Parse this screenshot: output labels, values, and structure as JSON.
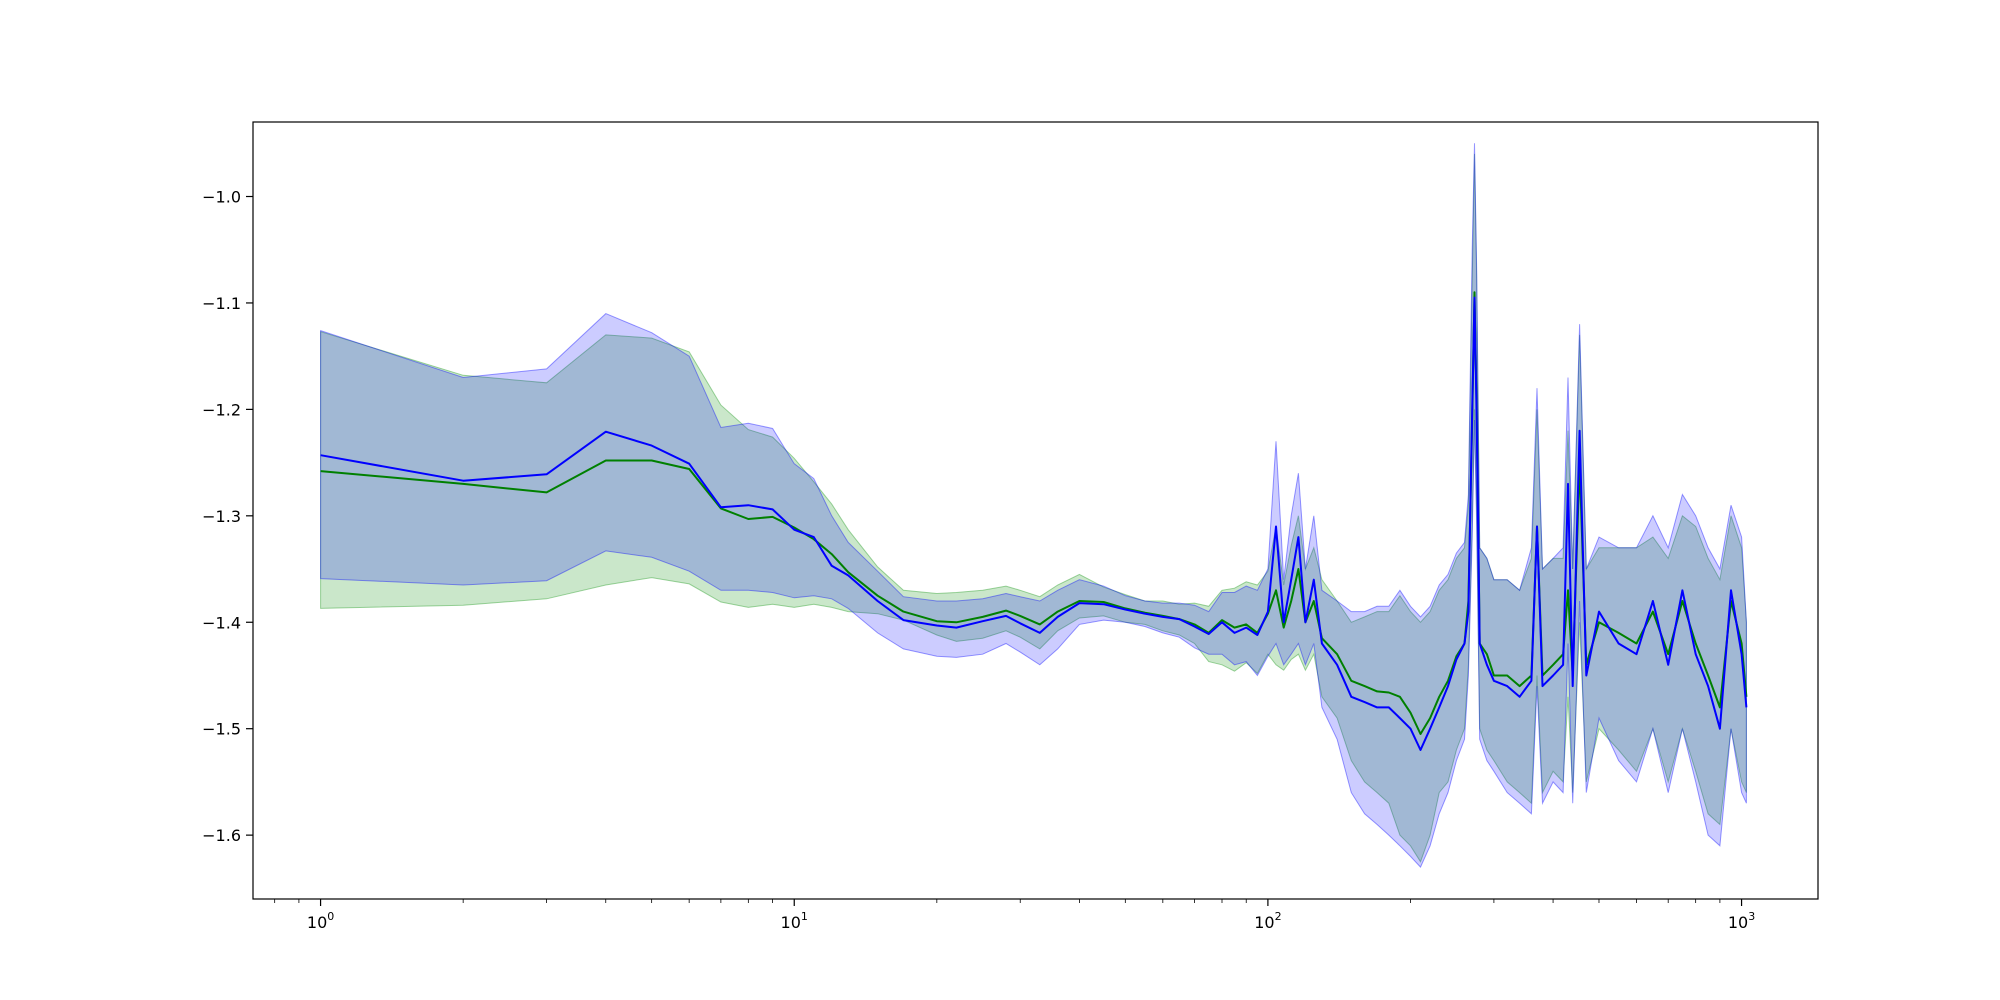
{
  "chart_data": {
    "type": "line",
    "x_scale": "log",
    "xlim": [
      0.72,
      1450
    ],
    "ylim": [
      -1.66,
      -0.93
    ],
    "x_ticks": [
      {
        "value": 1,
        "base": "10",
        "exp": "0"
      },
      {
        "value": 10,
        "base": "10",
        "exp": "1"
      },
      {
        "value": 100,
        "base": "10",
        "exp": "2"
      },
      {
        "value": 1000,
        "base": "10",
        "exp": "3"
      }
    ],
    "y_ticks": [
      {
        "value": -1.0,
        "label": "−1.0"
      },
      {
        "value": -1.1,
        "label": "−1.1"
      },
      {
        "value": -1.2,
        "label": "−1.2"
      },
      {
        "value": -1.3,
        "label": "−1.3"
      },
      {
        "value": -1.4,
        "label": "−1.4"
      },
      {
        "value": -1.5,
        "label": "−1.5"
      },
      {
        "value": -1.6,
        "label": "−1.6"
      }
    ],
    "grid": false,
    "series": [
      {
        "color": "#008000",
        "band_color": "#2ca02c",
        "band_opacity": 0.25,
        "points": [
          [
            1,
            -1.258,
            -1.387,
            -1.127
          ],
          [
            2,
            -1.27,
            -1.384,
            -1.168
          ],
          [
            3,
            -1.278,
            -1.378,
            -1.175
          ],
          [
            4,
            -1.248,
            -1.365,
            -1.13
          ],
          [
            5,
            -1.248,
            -1.358,
            -1.133
          ],
          [
            6,
            -1.256,
            -1.364,
            -1.146
          ],
          [
            7,
            -1.293,
            -1.381,
            -1.196
          ],
          [
            8,
            -1.303,
            -1.386,
            -1.219
          ],
          [
            9,
            -1.301,
            -1.383,
            -1.226
          ],
          [
            10,
            -1.311,
            -1.386,
            -1.246
          ],
          [
            11,
            -1.322,
            -1.383,
            -1.268
          ],
          [
            12,
            -1.336,
            -1.386,
            -1.289
          ],
          [
            13,
            -1.353,
            -1.39,
            -1.313
          ],
          [
            15,
            -1.375,
            -1.392,
            -1.348
          ],
          [
            17,
            -1.39,
            -1.398,
            -1.37
          ],
          [
            20,
            -1.399,
            -1.412,
            -1.373
          ],
          [
            22,
            -1.4,
            -1.418,
            -1.372
          ],
          [
            25,
            -1.395,
            -1.415,
            -1.37
          ],
          [
            28,
            -1.389,
            -1.408,
            -1.366
          ],
          [
            30,
            -1.394,
            -1.414,
            -1.37
          ],
          [
            33,
            -1.402,
            -1.425,
            -1.376
          ],
          [
            36,
            -1.39,
            -1.408,
            -1.365
          ],
          [
            40,
            -1.38,
            -1.396,
            -1.355
          ],
          [
            45,
            -1.381,
            -1.394,
            -1.367
          ],
          [
            50,
            -1.387,
            -1.4,
            -1.374
          ],
          [
            55,
            -1.391,
            -1.402,
            -1.38
          ],
          [
            60,
            -1.394,
            -1.408,
            -1.38
          ],
          [
            65,
            -1.397,
            -1.412,
            -1.383
          ],
          [
            70,
            -1.402,
            -1.42,
            -1.382
          ],
          [
            75,
            -1.41,
            -1.437,
            -1.385
          ],
          [
            80,
            -1.398,
            -1.44,
            -1.37
          ],
          [
            85,
            -1.405,
            -1.446,
            -1.368
          ],
          [
            90,
            -1.402,
            -1.438,
            -1.362
          ],
          [
            95,
            -1.41,
            -1.448,
            -1.365
          ],
          [
            100,
            -1.392,
            -1.43,
            -1.352
          ],
          [
            104,
            -1.37,
            -1.44,
            -1.31
          ],
          [
            108,
            -1.405,
            -1.445,
            -1.365
          ],
          [
            112,
            -1.38,
            -1.435,
            -1.328
          ],
          [
            116,
            -1.35,
            -1.43,
            -1.3
          ],
          [
            120,
            -1.4,
            -1.445,
            -1.35
          ],
          [
            125,
            -1.38,
            -1.43,
            -1.33
          ],
          [
            130,
            -1.415,
            -1.47,
            -1.36
          ],
          [
            140,
            -1.43,
            -1.49,
            -1.38
          ],
          [
            150,
            -1.455,
            -1.53,
            -1.4
          ],
          [
            160,
            -1.46,
            -1.55,
            -1.395
          ],
          [
            170,
            -1.465,
            -1.56,
            -1.39
          ],
          [
            180,
            -1.466,
            -1.57,
            -1.39
          ],
          [
            190,
            -1.47,
            -1.6,
            -1.375
          ],
          [
            200,
            -1.485,
            -1.61,
            -1.39
          ],
          [
            210,
            -1.505,
            -1.625,
            -1.4
          ],
          [
            220,
            -1.49,
            -1.6,
            -1.39
          ],
          [
            230,
            -1.47,
            -1.56,
            -1.37
          ],
          [
            240,
            -1.455,
            -1.55,
            -1.36
          ],
          [
            250,
            -1.432,
            -1.52,
            -1.34
          ],
          [
            260,
            -1.42,
            -1.5,
            -1.33
          ],
          [
            265,
            -1.38,
            -1.44,
            -1.29
          ],
          [
            270,
            -1.21,
            -1.31,
            -1.08
          ],
          [
            273,
            -1.09,
            -1.2,
            -0.96
          ],
          [
            276,
            -1.2,
            -1.3,
            -1.08
          ],
          [
            280,
            -1.42,
            -1.5,
            -1.33
          ],
          [
            290,
            -1.43,
            -1.52,
            -1.34
          ],
          [
            300,
            -1.45,
            -1.53,
            -1.36
          ],
          [
            320,
            -1.45,
            -1.55,
            -1.36
          ],
          [
            340,
            -1.46,
            -1.56,
            -1.37
          ],
          [
            360,
            -1.45,
            -1.57,
            -1.34
          ],
          [
            370,
            -1.31,
            -1.45,
            -1.2
          ],
          [
            380,
            -1.45,
            -1.56,
            -1.35
          ],
          [
            400,
            -1.44,
            -1.54,
            -1.34
          ],
          [
            420,
            -1.43,
            -1.55,
            -1.34
          ],
          [
            430,
            -1.37,
            -1.47,
            -1.22
          ],
          [
            440,
            -1.45,
            -1.56,
            -1.35
          ],
          [
            455,
            -1.25,
            -1.4,
            -1.13
          ],
          [
            470,
            -1.44,
            -1.55,
            -1.35
          ],
          [
            500,
            -1.4,
            -1.5,
            -1.33
          ],
          [
            550,
            -1.41,
            -1.52,
            -1.33
          ],
          [
            600,
            -1.42,
            -1.54,
            -1.33
          ],
          [
            650,
            -1.39,
            -1.5,
            -1.32
          ],
          [
            700,
            -1.43,
            -1.55,
            -1.34
          ],
          [
            750,
            -1.38,
            -1.5,
            -1.3
          ],
          [
            800,
            -1.42,
            -1.54,
            -1.31
          ],
          [
            850,
            -1.45,
            -1.58,
            -1.34
          ],
          [
            900,
            -1.48,
            -1.59,
            -1.36
          ],
          [
            950,
            -1.38,
            -1.5,
            -1.3
          ],
          [
            1000,
            -1.42,
            -1.55,
            -1.33
          ],
          [
            1024,
            -1.47,
            -1.56,
            -1.4
          ]
        ]
      },
      {
        "color": "#0000ff",
        "band_color": "#0000ff",
        "band_opacity": 0.2,
        "points": [
          [
            1,
            -1.243,
            -1.359,
            -1.126
          ],
          [
            2,
            -1.267,
            -1.365,
            -1.17
          ],
          [
            3,
            -1.261,
            -1.361,
            -1.162
          ],
          [
            4,
            -1.221,
            -1.333,
            -1.11
          ],
          [
            5,
            -1.234,
            -1.339,
            -1.128
          ],
          [
            6,
            -1.251,
            -1.352,
            -1.15
          ],
          [
            7,
            -1.292,
            -1.37,
            -1.217
          ],
          [
            8,
            -1.29,
            -1.37,
            -1.213
          ],
          [
            9,
            -1.294,
            -1.372,
            -1.218
          ],
          [
            10,
            -1.313,
            -1.377,
            -1.251
          ],
          [
            11,
            -1.32,
            -1.375,
            -1.265
          ],
          [
            12,
            -1.347,
            -1.378,
            -1.3
          ],
          [
            13,
            -1.356,
            -1.387,
            -1.325
          ],
          [
            15,
            -1.38,
            -1.41,
            -1.352
          ],
          [
            17,
            -1.398,
            -1.425,
            -1.376
          ],
          [
            20,
            -1.403,
            -1.432,
            -1.38
          ],
          [
            22,
            -1.405,
            -1.433,
            -1.38
          ],
          [
            25,
            -1.399,
            -1.43,
            -1.378
          ],
          [
            28,
            -1.394,
            -1.42,
            -1.373
          ],
          [
            30,
            -1.401,
            -1.428,
            -1.376
          ],
          [
            33,
            -1.41,
            -1.44,
            -1.38
          ],
          [
            36,
            -1.395,
            -1.425,
            -1.37
          ],
          [
            40,
            -1.382,
            -1.402,
            -1.36
          ],
          [
            45,
            -1.383,
            -1.398,
            -1.366
          ],
          [
            50,
            -1.388,
            -1.4,
            -1.375
          ],
          [
            55,
            -1.392,
            -1.404,
            -1.38
          ],
          [
            60,
            -1.395,
            -1.41,
            -1.382
          ],
          [
            65,
            -1.397,
            -1.414,
            -1.382
          ],
          [
            70,
            -1.404,
            -1.424,
            -1.384
          ],
          [
            75,
            -1.411,
            -1.43,
            -1.39
          ],
          [
            80,
            -1.4,
            -1.43,
            -1.372
          ],
          [
            85,
            -1.41,
            -1.44,
            -1.372
          ],
          [
            90,
            -1.405,
            -1.437,
            -1.366
          ],
          [
            95,
            -1.412,
            -1.45,
            -1.37
          ],
          [
            100,
            -1.39,
            -1.432,
            -1.35
          ],
          [
            104,
            -1.31,
            -1.42,
            -1.23
          ],
          [
            108,
            -1.4,
            -1.44,
            -1.36
          ],
          [
            112,
            -1.36,
            -1.43,
            -1.3
          ],
          [
            116,
            -1.32,
            -1.42,
            -1.26
          ],
          [
            120,
            -1.4,
            -1.44,
            -1.35
          ],
          [
            125,
            -1.36,
            -1.42,
            -1.3
          ],
          [
            130,
            -1.42,
            -1.48,
            -1.37
          ],
          [
            140,
            -1.44,
            -1.51,
            -1.38
          ],
          [
            150,
            -1.47,
            -1.56,
            -1.39
          ],
          [
            160,
            -1.475,
            -1.58,
            -1.39
          ],
          [
            170,
            -1.48,
            -1.59,
            -1.385
          ],
          [
            180,
            -1.48,
            -1.6,
            -1.385
          ],
          [
            190,
            -1.49,
            -1.61,
            -1.37
          ],
          [
            200,
            -1.5,
            -1.62,
            -1.385
          ],
          [
            210,
            -1.52,
            -1.63,
            -1.395
          ],
          [
            220,
            -1.5,
            -1.61,
            -1.385
          ],
          [
            230,
            -1.48,
            -1.58,
            -1.365
          ],
          [
            240,
            -1.46,
            -1.56,
            -1.355
          ],
          [
            250,
            -1.435,
            -1.53,
            -1.335
          ],
          [
            260,
            -1.42,
            -1.51,
            -1.325
          ],
          [
            265,
            -1.39,
            -1.45,
            -1.28
          ],
          [
            270,
            -1.2,
            -1.32,
            -1.05
          ],
          [
            273,
            -1.095,
            -1.21,
            -0.95
          ],
          [
            276,
            -1.21,
            -1.31,
            -1.07
          ],
          [
            280,
            -1.42,
            -1.51,
            -1.33
          ],
          [
            290,
            -1.44,
            -1.53,
            -1.34
          ],
          [
            300,
            -1.455,
            -1.54,
            -1.36
          ],
          [
            320,
            -1.46,
            -1.56,
            -1.36
          ],
          [
            340,
            -1.47,
            -1.57,
            -1.37
          ],
          [
            360,
            -1.455,
            -1.58,
            -1.33
          ],
          [
            370,
            -1.31,
            -1.46,
            -1.18
          ],
          [
            380,
            -1.46,
            -1.57,
            -1.35
          ],
          [
            400,
            -1.45,
            -1.55,
            -1.34
          ],
          [
            420,
            -1.44,
            -1.56,
            -1.33
          ],
          [
            430,
            -1.27,
            -1.42,
            -1.17
          ],
          [
            440,
            -1.46,
            -1.57,
            -1.35
          ],
          [
            455,
            -1.22,
            -1.38,
            -1.12
          ],
          [
            470,
            -1.45,
            -1.56,
            -1.35
          ],
          [
            500,
            -1.39,
            -1.49,
            -1.32
          ],
          [
            550,
            -1.42,
            -1.53,
            -1.33
          ],
          [
            600,
            -1.43,
            -1.55,
            -1.33
          ],
          [
            650,
            -1.38,
            -1.5,
            -1.3
          ],
          [
            700,
            -1.44,
            -1.56,
            -1.33
          ],
          [
            750,
            -1.37,
            -1.5,
            -1.28
          ],
          [
            800,
            -1.43,
            -1.55,
            -1.3
          ],
          [
            850,
            -1.46,
            -1.6,
            -1.33
          ],
          [
            900,
            -1.5,
            -1.61,
            -1.35
          ],
          [
            950,
            -1.37,
            -1.5,
            -1.29
          ],
          [
            1000,
            -1.43,
            -1.56,
            -1.32
          ],
          [
            1024,
            -1.48,
            -1.57,
            -1.4
          ]
        ]
      }
    ]
  }
}
